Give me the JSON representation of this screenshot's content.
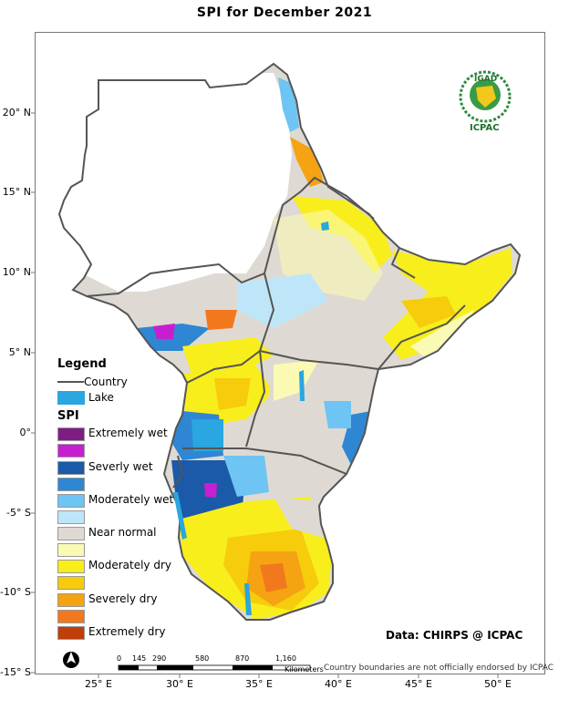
{
  "title": "SPI   for   December 2021",
  "legend": {
    "title": "Legend",
    "country_label": "Country",
    "lake_label": "Lake",
    "spi_title": "SPI",
    "colors": {
      "lake": "#2aa6e0",
      "extremely_wet_1": "#7e1e82",
      "extremely_wet_2": "#c81ed2",
      "severely_wet_1": "#1a5aa8",
      "severely_wet_2": "#2f86d2",
      "moderately_wet_1": "#6ec4f2",
      "moderately_wet_2": "#bfe6f8",
      "near_normal": "#dedad3",
      "moderately_dry_1": "#fafab4",
      "moderately_dry_2": "#f8ee1c",
      "severely_dry_1": "#f6cc0c",
      "severely_dry_2": "#f5a312",
      "extremely_dry_1": "#f2781e",
      "extremely_dry_2": "#c03e08"
    },
    "items": [
      {
        "label": "Extremely wet"
      },
      {
        "label": ""
      },
      {
        "label": "Severly wet"
      },
      {
        "label": ""
      },
      {
        "label": "Moderately wet"
      },
      {
        "label": ""
      },
      {
        "label": "Near normal"
      },
      {
        "label": ""
      },
      {
        "label": "Moderately dry"
      },
      {
        "label": ""
      },
      {
        "label": "Severely dry"
      },
      {
        "label": ""
      },
      {
        "label": "Extremely dry"
      }
    ]
  },
  "axes": {
    "y_ticks": [
      "20° N",
      "15° N",
      "10° N",
      "5° N",
      "0°",
      "-5° S",
      "-10° S",
      "-15° S"
    ],
    "x_ticks": [
      "25° E",
      "30° E",
      "35° E",
      "40° E",
      "45° E",
      "50° E"
    ]
  },
  "scale_bar": {
    "ticks": [
      "0",
      "145",
      "290",
      "580",
      "870",
      "1,160"
    ],
    "unit": "Kilometers"
  },
  "logo": {
    "top_text": "IGAD",
    "bottom_text": "ICPAC"
  },
  "credit": "Data: CHIRPS @ ICPAC",
  "disclaimer": "Country boundaries are not officially endorsed by ICPAC"
}
